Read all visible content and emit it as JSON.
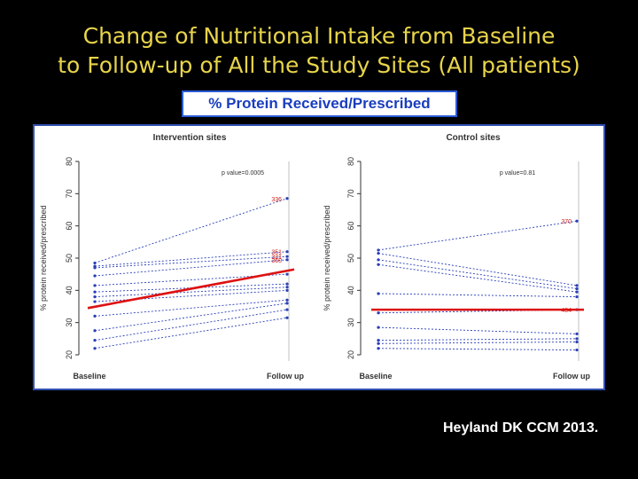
{
  "slide": {
    "title_line1": "Change of Nutritional Intake from Baseline",
    "title_line2": "to Follow-up of All the Study Sites (All patients)",
    "subtitle": "% Protein Received/Prescribed",
    "citation": "Heyland DK CCM 2013."
  },
  "colors": {
    "title": "#e8d44a",
    "mean_line": "#dd1111",
    "site_line": "#2a3fb8",
    "site_label": "#cc2222"
  },
  "chart_data": [
    {
      "type": "line",
      "title": "Intervention sites",
      "xlabel": "",
      "ylabel": "% protein received/prescribed",
      "categories": [
        "Baseline",
        "Follow up"
      ],
      "ylim": [
        20,
        80
      ],
      "yticks": [
        20,
        30,
        40,
        50,
        60,
        70,
        80
      ],
      "annotation": "p value=0.0005",
      "mean": {
        "name": "mean",
        "values": [
          34.5,
          46.5
        ]
      },
      "series": [
        {
          "start_label": "",
          "end_label": "336",
          "values": [
            48.5,
            68.5
          ]
        },
        {
          "start_label": "",
          "end_label": "351",
          "values": [
            47.5,
            52
          ]
        },
        {
          "start_label": "",
          "end_label": "331",
          "values": [
            47,
            50.5
          ]
        },
        {
          "start_label": "",
          "end_label": "360",
          "values": [
            44.5,
            49.5
          ]
        },
        {
          "start_label": "",
          "end_label": "",
          "values": [
            41.5,
            45
          ]
        },
        {
          "start_label": "",
          "end_label": "",
          "values": [
            39.5,
            42
          ]
        },
        {
          "start_label": "",
          "end_label": "",
          "values": [
            38,
            41
          ]
        },
        {
          "start_label": "",
          "end_label": "",
          "values": [
            36.5,
            40
          ]
        },
        {
          "start_label": "",
          "end_label": "",
          "values": [
            32,
            37
          ]
        },
        {
          "start_label": "",
          "end_label": "",
          "values": [
            27.5,
            36
          ]
        },
        {
          "start_label": "",
          "end_label": "",
          "values": [
            24.5,
            34
          ]
        },
        {
          "start_label": "",
          "end_label": "",
          "values": [
            22,
            31.5
          ]
        }
      ]
    },
    {
      "type": "line",
      "title": "Control sites",
      "xlabel": "",
      "ylabel": "% protein received/prescribed",
      "categories": [
        "Baseline",
        "Follow up"
      ],
      "ylim": [
        20,
        80
      ],
      "yticks": [
        20,
        30,
        40,
        50,
        60,
        70,
        80
      ],
      "annotation": "p value=0.81",
      "mean": {
        "name": "mean",
        "values": [
          34,
          34
        ]
      },
      "series": [
        {
          "start_label": "",
          "end_label": "370",
          "values": [
            52.5,
            61.5
          ]
        },
        {
          "start_label": "",
          "end_label": "",
          "values": [
            51.5,
            41.5
          ]
        },
        {
          "start_label": "",
          "end_label": "",
          "values": [
            49.5,
            40.5
          ]
        },
        {
          "start_label": "",
          "end_label": "",
          "values": [
            48,
            39.5
          ]
        },
        {
          "start_label": "",
          "end_label": "",
          "values": [
            39,
            38
          ]
        },
        {
          "start_label": "",
          "end_label": "404",
          "values": [
            33,
            34
          ]
        },
        {
          "start_label": "",
          "end_label": "",
          "values": [
            28.5,
            26.5
          ]
        },
        {
          "start_label": "",
          "end_label": "",
          "values": [
            24.5,
            25
          ]
        },
        {
          "start_label": "",
          "end_label": "",
          "values": [
            23.5,
            24
          ]
        },
        {
          "start_label": "",
          "end_label": "",
          "values": [
            22,
            21.5
          ]
        }
      ]
    }
  ]
}
